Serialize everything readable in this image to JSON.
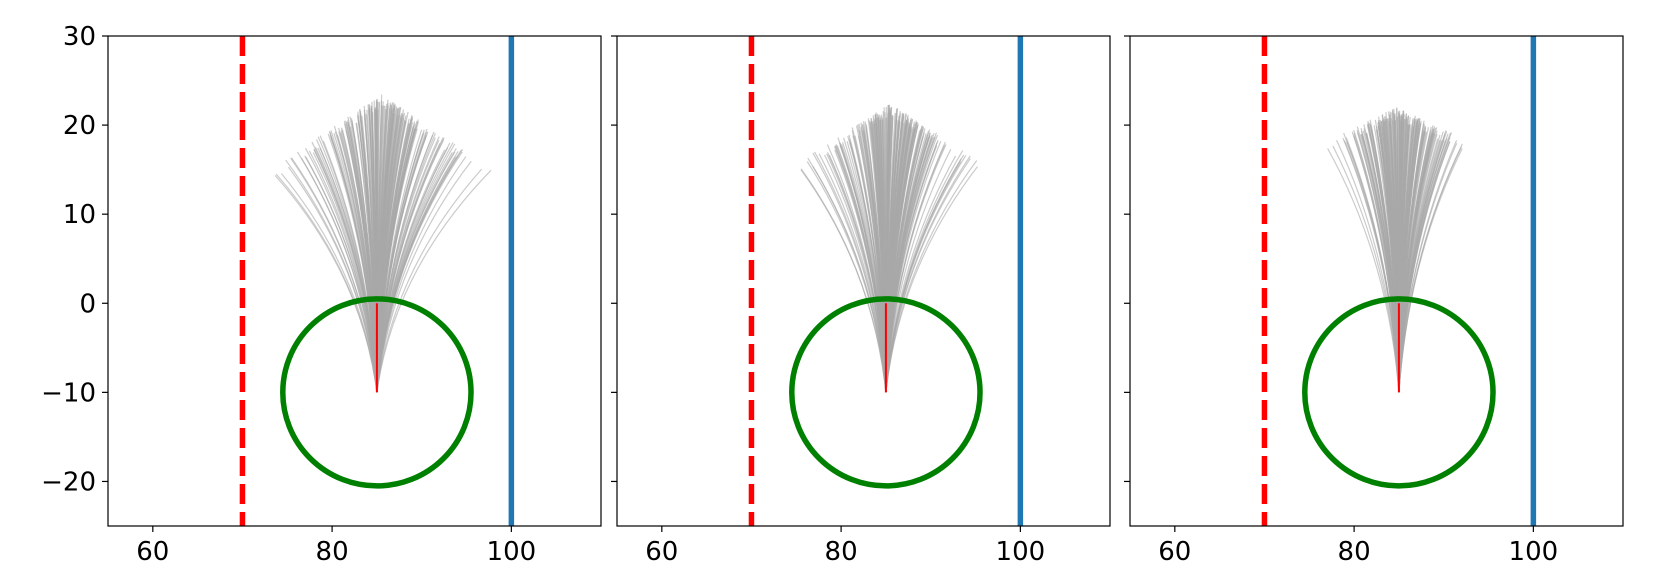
{
  "chart_data": [
    {
      "type": "line",
      "xlim": [
        55,
        110
      ],
      "ylim": [
        -25,
        30
      ],
      "xticks": [
        60,
        80,
        100
      ],
      "yticks": [
        30,
        20,
        10,
        0,
        -10,
        -20
      ],
      "xtick_labels": [
        "60",
        "80",
        "100"
      ],
      "ytick_labels": [
        "30",
        "20",
        "10",
        "0",
        "−10",
        "−20"
      ],
      "show_y_tick_labels": true,
      "grid": false,
      "vlines": [
        {
          "x": 70,
          "color": "#ff0000",
          "style": "dashed"
        },
        {
          "x": 100,
          "color": "#1f77b4",
          "style": "solid"
        }
      ],
      "circle": {
        "center": [
          85,
          -10
        ],
        "radius": 10.5,
        "color": "#008000"
      },
      "reference_line": {
        "x": [
          85,
          85
        ],
        "y": [
          -10,
          0
        ],
        "color": "#ff0000"
      },
      "fan": {
        "origin": [
          85,
          -10
        ],
        "tip_y_range": [
          15,
          23.5
        ],
        "tip_x_range": [
          73,
          98
        ],
        "color": "#a9a9a9",
        "count": 220
      }
    },
    {
      "type": "line",
      "xlim": [
        55,
        110
      ],
      "ylim": [
        -25,
        30
      ],
      "xticks": [
        60,
        80,
        100
      ],
      "yticks": [
        30,
        20,
        10,
        0,
        -10,
        -20
      ],
      "xtick_labels": [
        "60",
        "80",
        "100"
      ],
      "ytick_labels": [],
      "show_y_tick_labels": false,
      "grid": false,
      "vlines": [
        {
          "x": 70,
          "color": "#ff0000",
          "style": "dashed"
        },
        {
          "x": 100,
          "color": "#1f77b4",
          "style": "solid"
        }
      ],
      "circle": {
        "center": [
          85,
          -10
        ],
        "radius": 10.5,
        "color": "#008000"
      },
      "reference_line": {
        "x": [
          85,
          85
        ],
        "y": [
          -10,
          0
        ],
        "color": "#ff0000"
      },
      "fan": {
        "origin": [
          85,
          -10
        ],
        "tip_y_range": [
          16,
          22.5
        ],
        "tip_x_range": [
          75.5,
          95.5
        ],
        "color": "#a9a9a9",
        "count": 220
      }
    },
    {
      "type": "line",
      "xlim": [
        55,
        110
      ],
      "ylim": [
        -25,
        30
      ],
      "xticks": [
        60,
        80,
        100
      ],
      "yticks": [
        30,
        20,
        10,
        0,
        -10,
        -20
      ],
      "xtick_labels": [
        "60",
        "80",
        "100"
      ],
      "ytick_labels": [],
      "show_y_tick_labels": false,
      "grid": false,
      "vlines": [
        {
          "x": 70,
          "color": "#ff0000",
          "style": "dashed"
        },
        {
          "x": 100,
          "color": "#1f77b4",
          "style": "solid"
        }
      ],
      "circle": {
        "center": [
          85,
          -10
        ],
        "radius": 10.5,
        "color": "#008000"
      },
      "reference_line": {
        "x": [
          85,
          85
        ],
        "y": [
          -10,
          0
        ],
        "color": "#ff0000"
      },
      "fan": {
        "origin": [
          85,
          -10
        ],
        "tip_y_range": [
          18.5,
          22
        ],
        "tip_x_range": [
          77,
          92.5
        ],
        "color": "#a9a9a9",
        "count": 220
      }
    }
  ]
}
